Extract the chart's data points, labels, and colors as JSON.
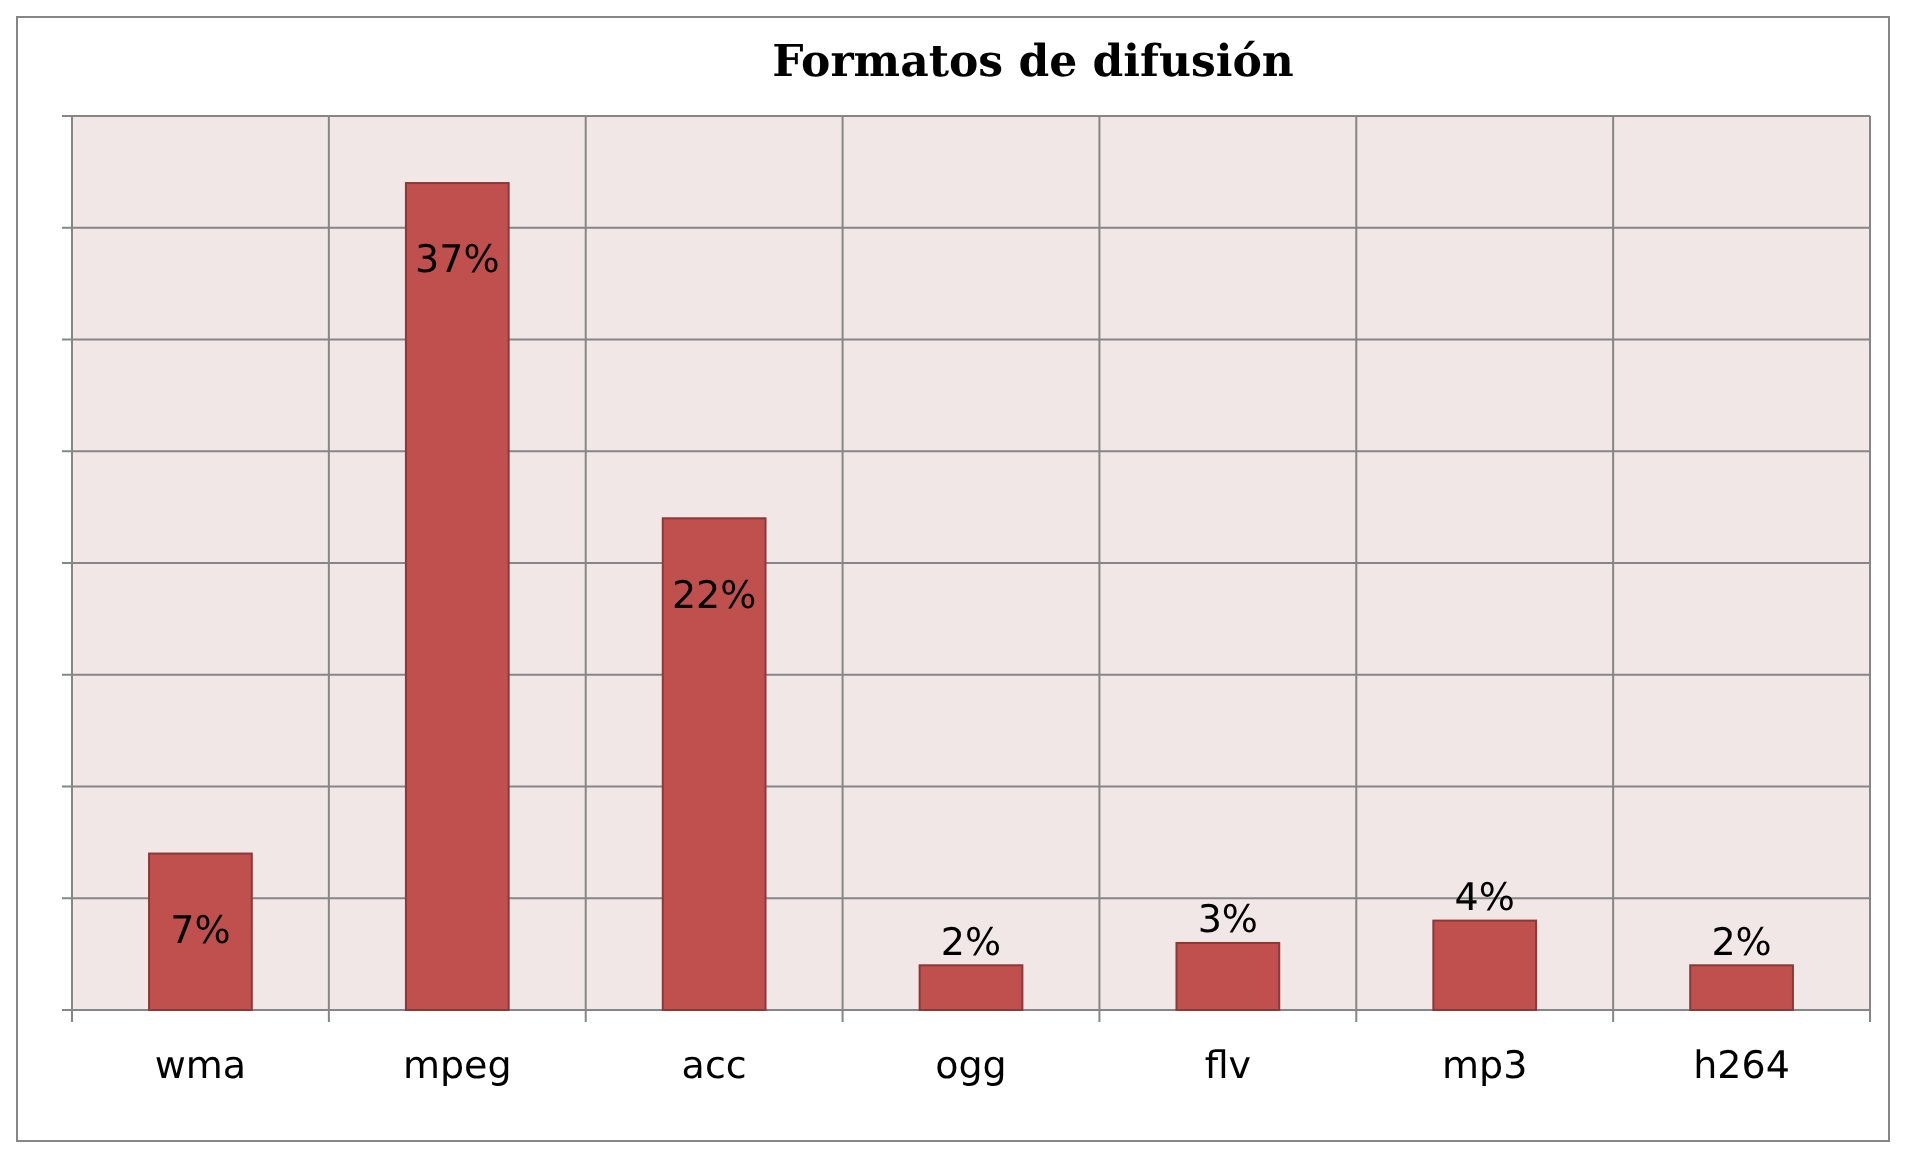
{
  "chart_data": {
    "type": "bar",
    "title": "Formatos de difusión",
    "categories": [
      "wma",
      "mpeg",
      "acc",
      "ogg",
      "flv",
      "mp3",
      "h264"
    ],
    "values": [
      7,
      37,
      22,
      2,
      3,
      4,
      2
    ],
    "value_labels": [
      "7%",
      "37%",
      "22%",
      "2%",
      "3%",
      "4%",
      "2%"
    ],
    "color": "#c0504d",
    "ylim": [
      0,
      40
    ],
    "yticks": [
      {
        "value": 0,
        "label": null
      },
      {
        "value": 5,
        "label": null
      },
      {
        "value": 10,
        "label": null
      },
      {
        "value": 15,
        "label": null
      },
      {
        "value": 20,
        "label": null
      },
      {
        "value": 25,
        "label": null
      },
      {
        "value": 30,
        "label": null
      },
      {
        "value": 35,
        "label": null
      },
      {
        "value": 40,
        "label": null
      }
    ],
    "grid": true
  }
}
